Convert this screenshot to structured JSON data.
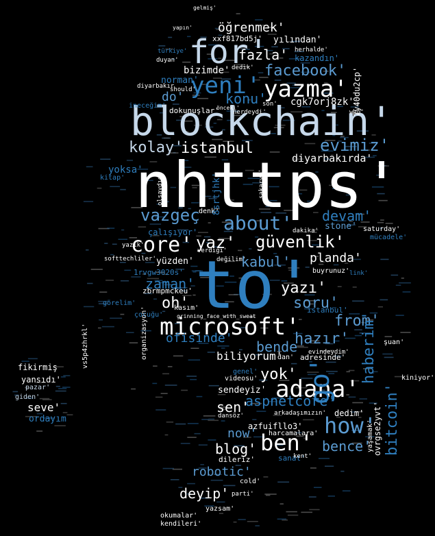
{
  "colors": {
    "background": "#000000",
    "light": "#ffffff",
    "pale": "#c6d8ea",
    "mid": "#5b9bd1",
    "deep": "#2f7fbf",
    "dark": "#1f5f96"
  },
  "words": {
    "nhttps": "nhttps'",
    "to": "to'",
    "blockchain": "blockchain'",
    "microsoft": "microsoft'",
    "for": "for'",
    "yazma": "yazma'",
    "adana": "adana'",
    "ben": "ben'",
    "how": "how'",
    "go": "go'",
    "yeni": "yeni'",
    "guvenlik": "güvenlik'",
    "core": "core'",
    "yaz": "yaz'",
    "about": "about'",
    "istanbul": "istanbul",
    "ogrenmek": "öğrenmek'",
    "fazla": "fazla'",
    "facebook": "facebook'",
    "evimiz": "evimiz'",
    "kolay": "kolay'",
    "vazgec": "vazgeç",
    "devam": "devam'",
    "kabul": "kabul'",
    "planda": "planda'",
    "yazi": "yazı'",
    "soru": "soru'",
    "oh": "oh'",
    "hazir": "hazır'",
    "from": "from'",
    "bende": "bende'",
    "ofisinde": "ofisinde'",
    "biliyorum": "biliyorum'",
    "yok": "yok'",
    "sen": "sen'",
    "aspnetcore": "aspnetcore'",
    "now": "now'",
    "blog": "blog'",
    "robotic": "robotic'",
    "deyip": "deyip'",
    "bence": "bence'",
    "seve": "seve'",
    "ordayim": "ordayım",
    "fikirmis": "fikirmiş",
    "yansidi": "yansıdı'",
    "giden": "giden'",
    "pazar": "pazar'",
    "sendeyiz": "sendeyiz'",
    "bizimde": "bizimde'",
    "yilindan": "yılından'",
    "xxf": "xxf817bd5j'",
    "cgk": "cgk7orj8zk'",
    "diyarbakirda": "diyarbakırda'",
    "zaman": "zaman'",
    "yuzden": "yüzden'",
    "konu": "konu'",
    "do": "do'",
    "norman": "norman'",
    "kazandin": "kazandın'",
    "haberim": "haberim'",
    "bitcoin": "bitcoin'",
    "dedim": "dedim'",
    "azfuifllo3": "azfuifllo3'",
    "stone": "stone'",
    "calisiyor": "çalışıyor'",
    "zbrmpmckeu": "zbrmpmckeu'",
    "softtechliler": "softtechliler'",
    "yoksa": "yoksa'",
    "gorelim": "görelim'",
    "sanat": "sanat'",
    "kent": "kent'",
    "dileriz": "dileriz'",
    "parti": "parti'",
    "okumalar": "okumalar'",
    "kendileri": "kendileri'",
    "yazsam": "yazsam'",
    "harcamalara": "harcamalara'",
    "ovrgse2yvt": "ovrgse2yvt'",
    "yasamak": "yaşamak'",
    "kiniyor": "kiniyor'",
    "dan": "dan'",
    "videosu": "videosu'",
    "genel": "genel'",
    "organizasyon": "organizasyon'",
    "vs5p4zhrkl": "vs5p4zhrkl'",
    "imk": "1rvgw3020s'",
    "adresinde": "adresinde'",
    "istanbul2": "istanbul'",
    "kasim": "kasım'",
    "dokunuslar": "dokunuşlar'",
    "inecegim": "ineceğim'",
    "duyan": "duyan'",
    "gelmis": "gelmiş'",
    "berhalde": "herhalde'",
    "turkiye": "türkiye'",
    "should": "should'",
    "diyarbakir": "diyarbakır",
    "dedik": "dedik'",
    "denk": "denk'",
    "verdigi": "verdiği'",
    "degilim": "değilim'",
    "buyrunuz": "buyrunuz'",
    "saturday": "saturday'",
    "mucadele": "mücadele'",
    "link": "link'",
    "dakika": "dakika'",
    "sakarya": "sakarya'",
    "nerdeydi": "nerdeydi'",
    "son": "son'",
    "yazik": "yazık'",
    "olsaydida": "olsaydıda",
    "sfrtjhk": "8srtjhk'",
    "elmada": "elmada'",
    "cold": "cold'",
    "suan": "şuan'",
    "who": "who'",
    "kitap": "kitap'",
    "konu2": "konu'",
    "yapin": "yapın'",
    "onceki": "önceki'",
    "dansoz": "dansöz'",
    "arkadasimizin": "arkadaşımızın'",
    "grinning": "grinning_face_with_sweat",
    "cocugu": "çocuğu'",
    "evindeydim": "evindeydim'",
    "sagliyor": "sağlıyor'",
    "hiz": "7y40du2cp'",
    "kadin": "kadın'",
    "yansir": "yansır'"
  }
}
